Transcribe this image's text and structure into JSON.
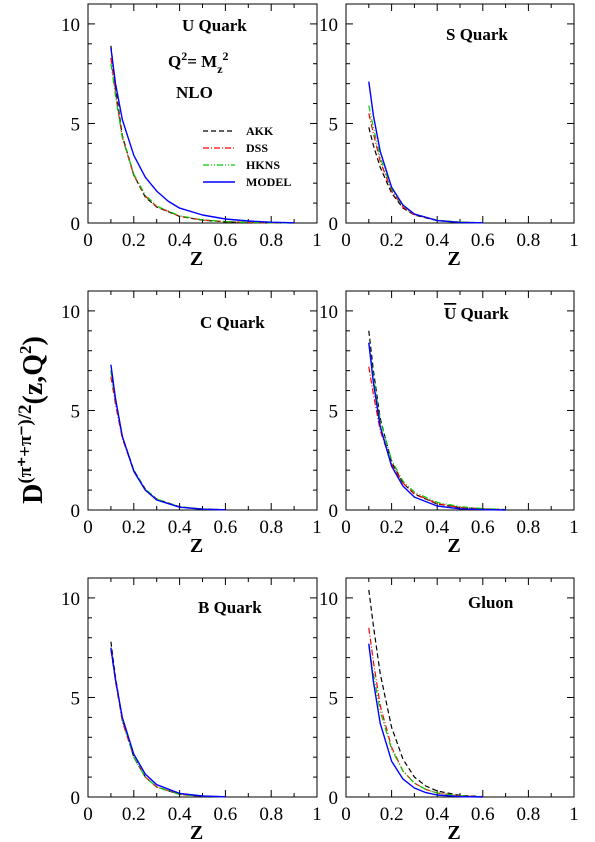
{
  "figure": {
    "ylabel_main": "D",
    "ylabel_sup": "(π⁺+π⁻)/2",
    "ylabel_arg": "(z,Q",
    "ylabel_arg_sup": "2",
    "ylabel_close": ")"
  },
  "chart_data": [
    {
      "type": "line",
      "xlabel": "Z",
      "xlim": [
        0,
        1
      ],
      "ylim": [
        0,
        11
      ],
      "xticks": [
        "0",
        "0.2",
        "0.4",
        "0.6",
        "0.8",
        "1"
      ],
      "yticks": [
        "0",
        "5",
        "10"
      ],
      "annotations": [
        "U Quark",
        "Q² = Mz²",
        "NLO"
      ],
      "legend": "top-right",
      "series": [
        {
          "name": "AKK",
          "color": "#000000",
          "dash": "dashed",
          "x": [
            0.1,
            0.12,
            0.15,
            0.2,
            0.25,
            0.3,
            0.4,
            0.5,
            0.6,
            0.7,
            0.8,
            0.9
          ],
          "values": [
            8.9,
            6.8,
            4.4,
            2.4,
            1.3,
            0.8,
            0.33,
            0.14,
            0.06,
            0.03,
            0.01,
            0.0
          ]
        },
        {
          "name": "DSS",
          "color": "#ff0000",
          "dash": "dashdot",
          "x": [
            0.1,
            0.12,
            0.15,
            0.2,
            0.25,
            0.3,
            0.4,
            0.5,
            0.6,
            0.7,
            0.8,
            0.9
          ],
          "values": [
            8.3,
            6.5,
            4.3,
            2.4,
            1.35,
            0.82,
            0.34,
            0.15,
            0.07,
            0.03,
            0.01,
            0.0
          ]
        },
        {
          "name": "HKNS",
          "color": "#00cc00",
          "dash": "dashdotdot",
          "x": [
            0.1,
            0.12,
            0.15,
            0.2,
            0.25,
            0.3,
            0.4,
            0.5,
            0.6,
            0.7,
            0.8,
            0.9
          ],
          "values": [
            8.0,
            6.4,
            4.3,
            2.45,
            1.4,
            0.85,
            0.36,
            0.16,
            0.07,
            0.03,
            0.01,
            0.0
          ]
        },
        {
          "name": "MODEL",
          "color": "#0000ff",
          "dash": "solid",
          "x": [
            0.1,
            0.12,
            0.15,
            0.2,
            0.25,
            0.3,
            0.35,
            0.4,
            0.5,
            0.6,
            0.7,
            0.8,
            0.9
          ],
          "values": [
            8.8,
            7.0,
            5.2,
            3.4,
            2.3,
            1.6,
            1.1,
            0.75,
            0.4,
            0.2,
            0.1,
            0.04,
            0.01
          ]
        }
      ]
    },
    {
      "type": "line",
      "xlabel": "Z",
      "xlim": [
        0,
        1
      ],
      "ylim": [
        0,
        11
      ],
      "xticks": [
        "0",
        "0.2",
        "0.4",
        "0.6",
        "0.8",
        "1"
      ],
      "yticks": [
        "0",
        "5",
        "10"
      ],
      "annotations": [
        "S Quark"
      ],
      "series": [
        {
          "name": "AKK",
          "color": "#000000",
          "dash": "dashed",
          "x": [
            0.1,
            0.12,
            0.15,
            0.2,
            0.25,
            0.3,
            0.4,
            0.5,
            0.6
          ],
          "values": [
            4.8,
            3.9,
            2.8,
            1.5,
            0.75,
            0.4,
            0.12,
            0.04,
            0.01
          ]
        },
        {
          "name": "DSS",
          "color": "#ff0000",
          "dash": "dashdot",
          "x": [
            0.1,
            0.12,
            0.15,
            0.2,
            0.25,
            0.3,
            0.4,
            0.5,
            0.6
          ],
          "values": [
            5.5,
            4.5,
            3.1,
            1.6,
            0.8,
            0.42,
            0.13,
            0.04,
            0.01
          ]
        },
        {
          "name": "HKNS",
          "color": "#00cc00",
          "dash": "dashdotdot",
          "x": [
            0.1,
            0.12,
            0.15,
            0.2,
            0.25,
            0.3,
            0.4,
            0.5,
            0.6
          ],
          "values": [
            5.9,
            4.8,
            3.3,
            1.7,
            0.85,
            0.45,
            0.14,
            0.05,
            0.01
          ]
        },
        {
          "name": "MODEL",
          "color": "#0000ff",
          "dash": "solid",
          "x": [
            0.1,
            0.12,
            0.15,
            0.2,
            0.25,
            0.3,
            0.4,
            0.5,
            0.6
          ],
          "values": [
            7.1,
            5.4,
            3.6,
            1.8,
            0.9,
            0.45,
            0.12,
            0.03,
            0.01
          ]
        }
      ]
    },
    {
      "type": "line",
      "xlabel": "Z",
      "xlim": [
        0,
        1
      ],
      "ylim": [
        0,
        11
      ],
      "xticks": [
        "0",
        "0.2",
        "0.4",
        "0.6",
        "0.8",
        "1"
      ],
      "yticks": [
        "0",
        "5",
        "10"
      ],
      "annotations": [
        "C Quark"
      ],
      "series": [
        {
          "name": "AKK",
          "color": "#000000",
          "dash": "dashed",
          "x": [
            0.1,
            0.12,
            0.15,
            0.2,
            0.25,
            0.3,
            0.4,
            0.5,
            0.6
          ],
          "values": [
            7.0,
            5.5,
            3.7,
            2.0,
            1.05,
            0.55,
            0.16,
            0.05,
            0.01
          ]
        },
        {
          "name": "DSS",
          "color": "#ff0000",
          "dash": "dashdot",
          "x": [
            0.1,
            0.12,
            0.15,
            0.2,
            0.25,
            0.3,
            0.4,
            0.5,
            0.6
          ],
          "values": [
            6.7,
            5.3,
            3.6,
            1.95,
            1.0,
            0.52,
            0.15,
            0.05,
            0.01
          ]
        },
        {
          "name": "HKNS",
          "color": "#00cc00",
          "dash": "dashdotdot",
          "x": [
            0.1,
            0.12,
            0.15,
            0.2,
            0.25,
            0.3,
            0.4,
            0.5,
            0.6
          ],
          "values": [
            7.0,
            5.5,
            3.7,
            2.0,
            1.05,
            0.55,
            0.16,
            0.05,
            0.01
          ]
        },
        {
          "name": "MODEL",
          "color": "#0000ff",
          "dash": "solid",
          "x": [
            0.1,
            0.12,
            0.15,
            0.2,
            0.25,
            0.3,
            0.4,
            0.5,
            0.6
          ],
          "values": [
            7.3,
            5.6,
            3.7,
            1.95,
            1.0,
            0.5,
            0.14,
            0.04,
            0.01
          ]
        }
      ]
    },
    {
      "type": "line",
      "xlabel": "Z",
      "xlim": [
        0,
        1
      ],
      "ylim": [
        0,
        11
      ],
      "xticks": [
        "0",
        "0.2",
        "0.4",
        "0.6",
        "0.8",
        "1"
      ],
      "yticks": [
        "0",
        "5",
        "10"
      ],
      "annotations": [
        "U Quark (overbar)"
      ],
      "series": [
        {
          "name": "AKK",
          "color": "#000000",
          "dash": "dashed",
          "x": [
            0.1,
            0.12,
            0.15,
            0.2,
            0.25,
            0.3,
            0.4,
            0.5,
            0.6,
            0.7
          ],
          "values": [
            9.0,
            7.0,
            4.6,
            2.4,
            1.35,
            0.8,
            0.3,
            0.12,
            0.05,
            0.02
          ]
        },
        {
          "name": "DSS",
          "color": "#ff0000",
          "dash": "dashdot",
          "x": [
            0.1,
            0.12,
            0.15,
            0.2,
            0.25,
            0.3,
            0.4,
            0.5,
            0.6,
            0.7
          ],
          "values": [
            7.2,
            5.8,
            4.0,
            2.3,
            1.35,
            0.82,
            0.32,
            0.13,
            0.05,
            0.02
          ]
        },
        {
          "name": "HKNS",
          "color": "#00cc00",
          "dash": "dashdotdot",
          "x": [
            0.1,
            0.12,
            0.15,
            0.2,
            0.25,
            0.3,
            0.4,
            0.5,
            0.6,
            0.7
          ],
          "values": [
            8.4,
            6.7,
            4.5,
            2.5,
            1.45,
            0.9,
            0.38,
            0.17,
            0.07,
            0.03
          ]
        },
        {
          "name": "MODEL",
          "color": "#0000ff",
          "dash": "solid",
          "x": [
            0.1,
            0.12,
            0.15,
            0.2,
            0.25,
            0.3,
            0.4,
            0.5,
            0.6,
            0.7
          ],
          "values": [
            8.4,
            6.4,
            4.2,
            2.2,
            1.2,
            0.65,
            0.2,
            0.06,
            0.02,
            0.0
          ]
        }
      ]
    },
    {
      "type": "line",
      "xlabel": "Z",
      "xlim": [
        0,
        1
      ],
      "ylim": [
        0,
        11
      ],
      "xticks": [
        "0",
        "0.2",
        "0.4",
        "0.6",
        "0.8",
        "1"
      ],
      "yticks": [
        "0",
        "5",
        "10"
      ],
      "annotations": [
        "B Quark"
      ],
      "series": [
        {
          "name": "AKK",
          "color": "#000000",
          "dash": "dashed",
          "x": [
            0.1,
            0.12,
            0.15,
            0.2,
            0.25,
            0.3,
            0.4,
            0.5,
            0.6
          ],
          "values": [
            7.8,
            6.0,
            3.9,
            2.0,
            1.0,
            0.5,
            0.13,
            0.04,
            0.01
          ]
        },
        {
          "name": "DSS",
          "color": "#ff0000",
          "dash": "dashdot",
          "x": [
            0.1,
            0.12,
            0.15,
            0.2,
            0.25,
            0.3,
            0.4,
            0.5,
            0.6
          ],
          "values": [
            7.4,
            5.8,
            3.8,
            2.0,
            1.0,
            0.5,
            0.13,
            0.04,
            0.01
          ]
        },
        {
          "name": "HKNS",
          "color": "#00cc00",
          "dash": "dashdotdot",
          "x": [
            0.1,
            0.12,
            0.15,
            0.2,
            0.25,
            0.3,
            0.4,
            0.5,
            0.6
          ],
          "values": [
            7.5,
            5.9,
            3.9,
            2.0,
            1.0,
            0.5,
            0.13,
            0.04,
            0.01
          ]
        },
        {
          "name": "MODEL",
          "color": "#0000ff",
          "dash": "solid",
          "x": [
            0.1,
            0.12,
            0.15,
            0.2,
            0.25,
            0.3,
            0.4,
            0.5,
            0.6
          ],
          "values": [
            7.5,
            5.9,
            4.0,
            2.15,
            1.15,
            0.62,
            0.18,
            0.05,
            0.01
          ]
        }
      ]
    },
    {
      "type": "line",
      "xlabel": "Z",
      "xlim": [
        0,
        1
      ],
      "ylim": [
        0,
        11
      ],
      "xticks": [
        "0",
        "0.2",
        "0.4",
        "0.6",
        "0.8",
        "1"
      ],
      "yticks": [
        "0",
        "5",
        "10"
      ],
      "annotations": [
        "Gluon"
      ],
      "series": [
        {
          "name": "AKK",
          "color": "#000000",
          "dash": "dashed",
          "x": [
            0.1,
            0.12,
            0.15,
            0.2,
            0.25,
            0.3,
            0.35,
            0.4,
            0.5,
            0.6
          ],
          "values": [
            10.4,
            8.6,
            6.2,
            3.5,
            1.9,
            1.0,
            0.55,
            0.3,
            0.08,
            0.02
          ]
        },
        {
          "name": "DSS",
          "color": "#ff0000",
          "dash": "dashdot",
          "x": [
            0.1,
            0.12,
            0.15,
            0.2,
            0.25,
            0.3,
            0.35,
            0.4,
            0.5,
            0.6
          ],
          "values": [
            8.5,
            6.8,
            4.6,
            2.5,
            1.3,
            0.7,
            0.38,
            0.2,
            0.06,
            0.01
          ]
        },
        {
          "name": "HKNS",
          "color": "#00cc00",
          "dash": "dashdotdot",
          "x": [
            0.1,
            0.12,
            0.15,
            0.2,
            0.25,
            0.3,
            0.35,
            0.4,
            0.5,
            0.6
          ],
          "values": [
            7.6,
            6.2,
            4.3,
            2.4,
            1.3,
            0.7,
            0.38,
            0.2,
            0.06,
            0.01
          ]
        },
        {
          "name": "MODEL",
          "color": "#0000ff",
          "dash": "solid",
          "x": [
            0.1,
            0.12,
            0.15,
            0.2,
            0.25,
            0.3,
            0.35,
            0.4,
            0.5,
            0.6
          ],
          "values": [
            7.7,
            5.8,
            3.7,
            1.8,
            0.9,
            0.45,
            0.22,
            0.1,
            0.02,
            0.0
          ]
        }
      ]
    }
  ]
}
